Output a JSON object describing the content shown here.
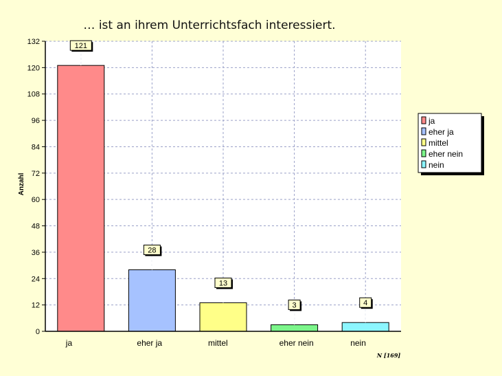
{
  "chart_data": {
    "type": "bar",
    "title": "… ist an ihrem Unterrichtsfach interessiert.",
    "xlabel": "",
    "ylabel": "Anzahl",
    "categories": [
      "ja",
      "eher ja",
      "mittel",
      "eher nein",
      "nein"
    ],
    "values": [
      121,
      28,
      13,
      3,
      4
    ],
    "colors": [
      "#ff8a8a",
      "#a6c2ff",
      "#ffff88",
      "#7cf58a",
      "#8cf6ff"
    ],
    "ylim": [
      0,
      132
    ],
    "yticks": [
      0,
      12,
      24,
      36,
      48,
      60,
      72,
      84,
      96,
      108,
      120,
      132
    ],
    "grid": true,
    "legend_position": "right",
    "legend": [
      "ja",
      "eher ja",
      "mittel",
      "eher nein",
      "nein"
    ],
    "footnote": "N [169]"
  }
}
